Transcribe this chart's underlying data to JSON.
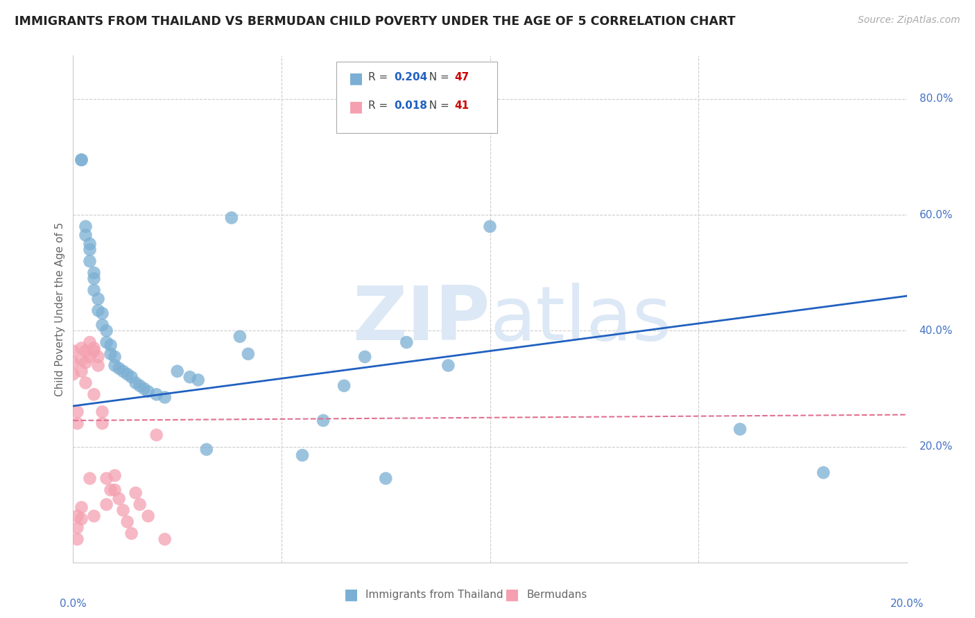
{
  "title": "IMMIGRANTS FROM THAILAND VS BERMUDAN CHILD POVERTY UNDER THE AGE OF 5 CORRELATION CHART",
  "source": "Source: ZipAtlas.com",
  "ylabel": "Child Poverty Under the Age of 5",
  "xmin": 0.0,
  "xmax": 0.2,
  "ymin": 0.0,
  "ymax": 0.875,
  "yticks": [
    0.0,
    0.2,
    0.4,
    0.6,
    0.8
  ],
  "ytick_labels": [
    "",
    "20.0%",
    "40.0%",
    "60.0%",
    "80.0%"
  ],
  "xticks": [
    0.0,
    0.05,
    0.1,
    0.15,
    0.2
  ],
  "grid_color": "#cccccc",
  "background_color": "#ffffff",
  "series1_color": "#7bafd4",
  "series2_color": "#f4a0b0",
  "series1_label": "Immigrants from Thailand",
  "series2_label": "Bermudans",
  "series1_R": "0.204",
  "series1_N": "47",
  "series2_R": "0.018",
  "series2_N": "41",
  "trendline1_color": "#2060c0",
  "trendline2_color": "#e07090",
  "watermark_color": "#dce8f5",
  "series1_x": [
    0.002,
    0.002,
    0.003,
    0.003,
    0.004,
    0.004,
    0.004,
    0.005,
    0.005,
    0.005,
    0.006,
    0.006,
    0.007,
    0.007,
    0.008,
    0.008,
    0.009,
    0.009,
    0.01,
    0.01,
    0.011,
    0.012,
    0.013,
    0.014,
    0.015,
    0.016,
    0.017,
    0.018,
    0.02,
    0.022,
    0.025,
    0.028,
    0.03,
    0.032,
    0.038,
    0.04,
    0.042,
    0.055,
    0.06,
    0.065,
    0.07,
    0.075,
    0.08,
    0.09,
    0.1,
    0.16,
    0.18
  ],
  "series1_y": [
    0.695,
    0.695,
    0.58,
    0.565,
    0.55,
    0.54,
    0.52,
    0.5,
    0.49,
    0.47,
    0.455,
    0.435,
    0.43,
    0.41,
    0.4,
    0.38,
    0.375,
    0.36,
    0.355,
    0.34,
    0.335,
    0.33,
    0.325,
    0.32,
    0.31,
    0.305,
    0.3,
    0.295,
    0.29,
    0.285,
    0.33,
    0.32,
    0.315,
    0.195,
    0.595,
    0.39,
    0.36,
    0.185,
    0.245,
    0.305,
    0.355,
    0.145,
    0.38,
    0.34,
    0.58,
    0.23,
    0.155
  ],
  "series2_x": [
    0.0,
    0.0,
    0.0,
    0.001,
    0.001,
    0.001,
    0.001,
    0.001,
    0.002,
    0.002,
    0.002,
    0.002,
    0.002,
    0.003,
    0.003,
    0.003,
    0.004,
    0.004,
    0.004,
    0.005,
    0.005,
    0.005,
    0.005,
    0.006,
    0.006,
    0.007,
    0.007,
    0.008,
    0.008,
    0.009,
    0.01,
    0.01,
    0.011,
    0.012,
    0.013,
    0.014,
    0.015,
    0.016,
    0.018,
    0.02,
    0.022
  ],
  "series2_y": [
    0.365,
    0.345,
    0.325,
    0.24,
    0.26,
    0.08,
    0.06,
    0.04,
    0.37,
    0.35,
    0.33,
    0.095,
    0.075,
    0.365,
    0.345,
    0.31,
    0.38,
    0.355,
    0.145,
    0.37,
    0.365,
    0.29,
    0.08,
    0.355,
    0.34,
    0.26,
    0.24,
    0.145,
    0.1,
    0.125,
    0.15,
    0.125,
    0.11,
    0.09,
    0.07,
    0.05,
    0.12,
    0.1,
    0.08,
    0.22,
    0.04
  ],
  "trendline1_x0": 0.0,
  "trendline1_y0": 0.27,
  "trendline1_x1": 0.2,
  "trendline1_y1": 0.46,
  "trendline2_x0": 0.0,
  "trendline2_y0": 0.245,
  "trendline2_x1": 0.2,
  "trendline2_y1": 0.255
}
